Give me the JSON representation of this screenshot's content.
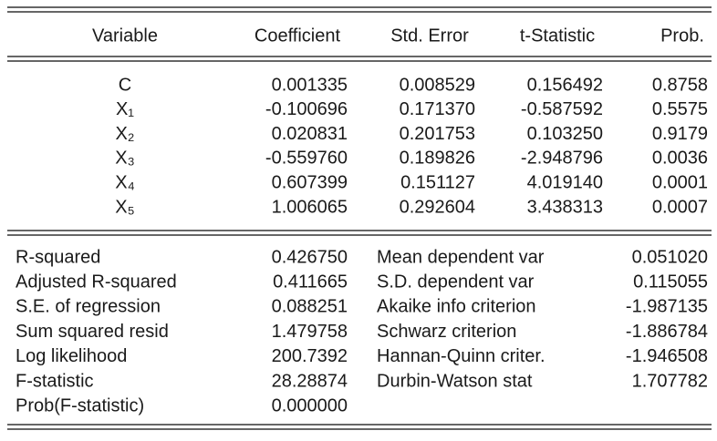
{
  "header": {
    "columns": [
      "Variable",
      "Coefficient",
      "Std. Error",
      "t-Statistic",
      "Prob."
    ]
  },
  "table": {
    "rows": [
      [
        "C",
        "0.001335",
        "0.008529",
        "0.156492",
        "0.8758"
      ],
      [
        "X₁",
        "-0.100696",
        "0.171370",
        "-0.587592",
        "0.5575"
      ],
      [
        "X₂",
        "0.020831",
        "0.201753",
        "0.103250",
        "0.9179"
      ],
      [
        "X₃",
        "-0.559760",
        "0.189826",
        "-2.948796",
        "0.0036"
      ],
      [
        "X₄",
        "0.607399",
        "0.151127",
        "4.019140",
        "0.0001"
      ],
      [
        "X₅",
        "1.006065",
        "0.292604",
        "3.438313",
        "0.0007"
      ]
    ]
  },
  "stats": {
    "left": [
      [
        "R-squared",
        "0.426750"
      ],
      [
        "Adjusted R-squared",
        "0.411665"
      ],
      [
        "S.E. of regression",
        "0.088251"
      ],
      [
        "Sum squared resid",
        "1.479758"
      ],
      [
        "Log likelihood",
        "200.7392"
      ],
      [
        "F-statistic",
        "28.28874"
      ],
      [
        "Prob(F-statistic)",
        "0.000000"
      ]
    ],
    "right": [
      [
        "Mean dependent var",
        "0.051020"
      ],
      [
        "S.D. dependent var",
        "0.115055"
      ],
      [
        "Akaike info criterion",
        "-1.987135"
      ],
      [
        "Schwarz criterion",
        "-1.886784"
      ],
      [
        "Hannan-Quinn criter.",
        "-1.946508"
      ],
      [
        "Durbin-Watson stat",
        "1.707782"
      ]
    ]
  }
}
